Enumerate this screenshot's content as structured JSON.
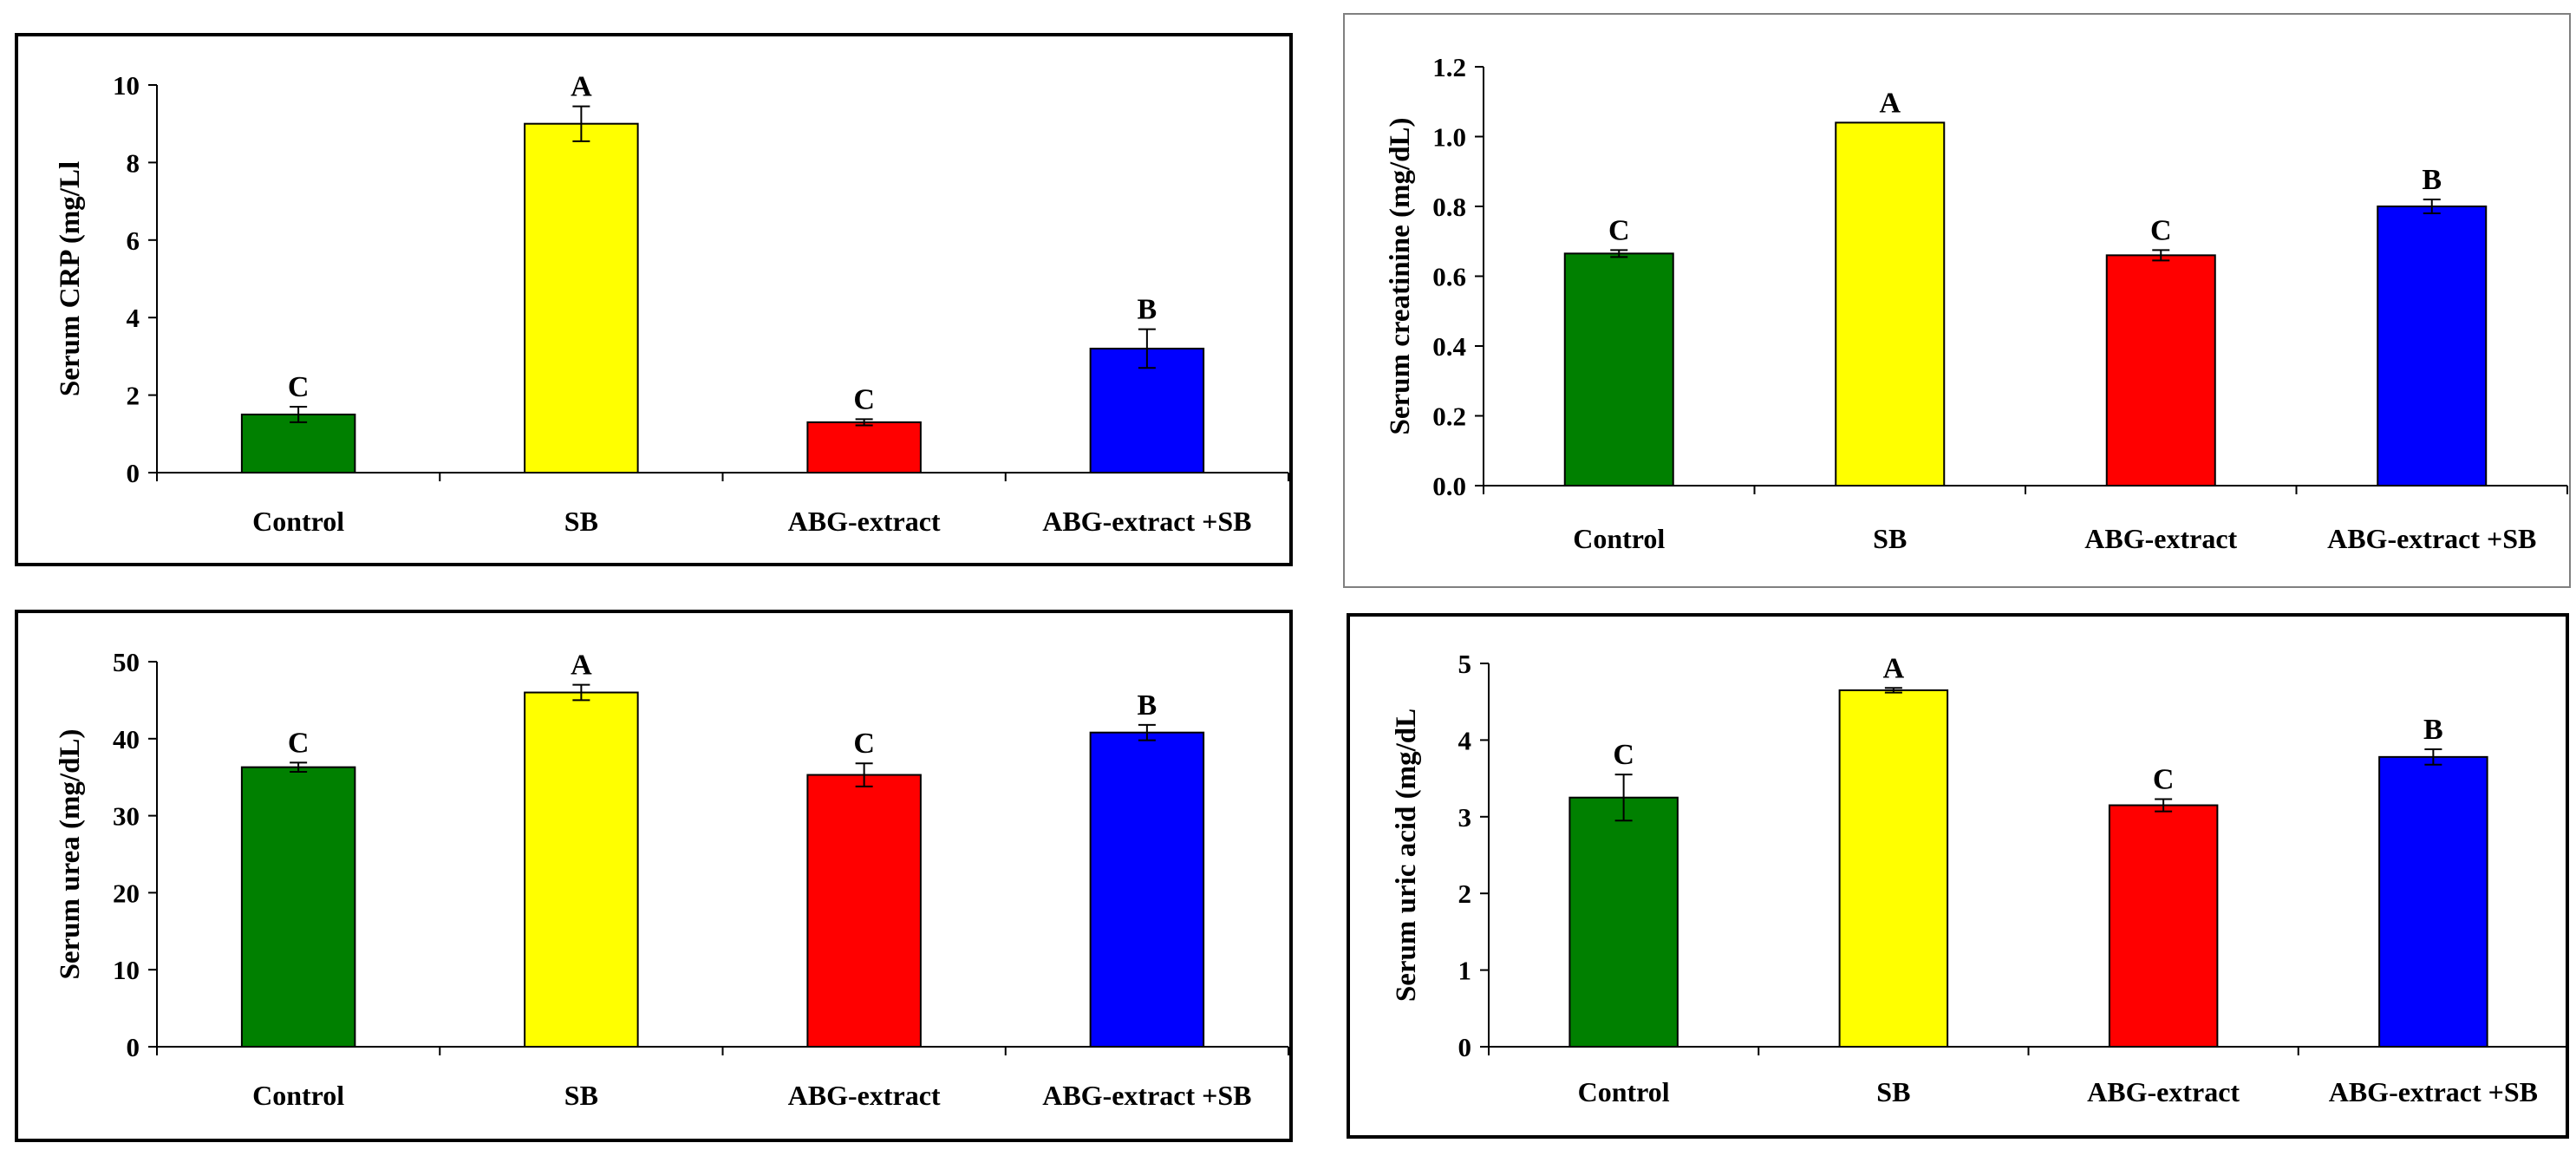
{
  "colors": {
    "control": "#008000",
    "sb": "#ffff00",
    "abg_extract": "#ff0000",
    "abg_extract_sb": "#0000ff",
    "border": "#000000",
    "axis": "#000000"
  },
  "chart_data": [
    {
      "type": "bar",
      "title": "",
      "xlabel": "",
      "ylabel": "Serum CRP (mg/Ll",
      "ylim": [
        0,
        10
      ],
      "yticks": [
        "0",
        "2",
        "4",
        "6",
        "8",
        "10"
      ],
      "categories": [
        "Control",
        "SB",
        "ABG-extract",
        "ABG-extract +SB"
      ],
      "values": [
        1.5,
        9.0,
        1.3,
        3.2
      ],
      "errors": [
        0.2,
        0.45,
        0.08,
        0.5
      ],
      "significance": [
        "C",
        "A",
        "C",
        "B"
      ],
      "grid": false
    },
    {
      "type": "bar",
      "title": "",
      "xlabel": "",
      "ylabel": "Serum creatinine (mg/dL)",
      "ylim": [
        0,
        1.2
      ],
      "yticks": [
        "0.0",
        "0.2",
        "0.4",
        "0.6",
        "0.8",
        "1.0",
        "1.2"
      ],
      "categories": [
        "Control",
        "SB",
        "ABG-extract",
        "ABG-extract +SB"
      ],
      "values": [
        0.665,
        1.04,
        0.66,
        0.8
      ],
      "errors": [
        0.01,
        0.0,
        0.015,
        0.02
      ],
      "significance": [
        "C",
        "A",
        "C",
        "B"
      ],
      "grid": false
    },
    {
      "type": "bar",
      "title": "",
      "xlabel": "",
      "ylabel": "Serum urea (mg/dL)",
      "ylim": [
        0,
        50
      ],
      "yticks": [
        "0",
        "10",
        "20",
        "30",
        "40",
        "50"
      ],
      "categories": [
        "Control",
        "SB",
        "ABG-extract",
        "ABG-extract +SB"
      ],
      "values": [
        36.3,
        46.0,
        35.3,
        40.8
      ],
      "errors": [
        0.6,
        1.0,
        1.5,
        1.0
      ],
      "significance": [
        "C",
        "A",
        "C",
        "B"
      ],
      "grid": false
    },
    {
      "type": "bar",
      "title": "",
      "xlabel": "",
      "ylabel": "Serum uric acid (mg/dL",
      "ylim": [
        0,
        5
      ],
      "yticks": [
        "0",
        "1",
        "2",
        "3",
        "4",
        "5"
      ],
      "categories": [
        "Control",
        "SB",
        "ABG-extract",
        "ABG-extract +SB"
      ],
      "values": [
        3.25,
        4.65,
        3.15,
        3.78
      ],
      "errors": [
        0.3,
        0.03,
        0.08,
        0.1
      ],
      "significance": [
        "C",
        "A",
        "C",
        "B"
      ],
      "grid": false
    }
  ]
}
